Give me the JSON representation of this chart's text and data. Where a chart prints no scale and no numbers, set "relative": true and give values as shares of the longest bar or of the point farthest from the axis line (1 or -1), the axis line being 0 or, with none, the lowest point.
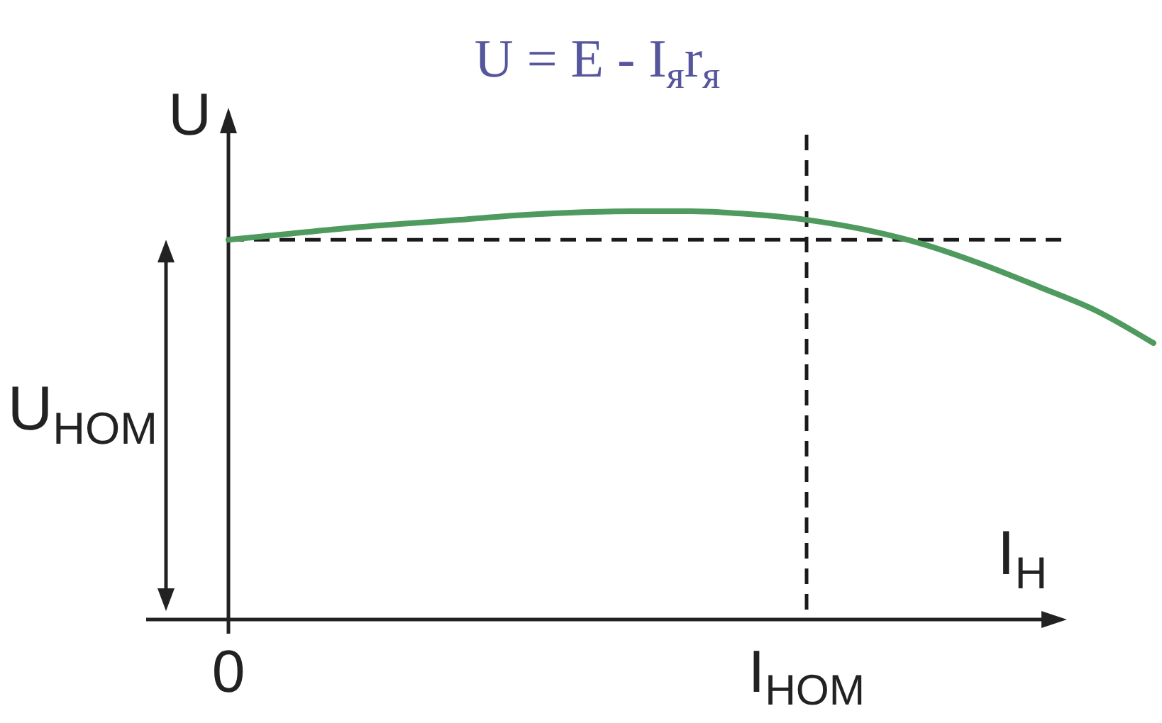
{
  "chart_data": {
    "type": "line",
    "title": "U = E - I$_{я}$r$_{я}$",
    "xlabel": "I$_{Н}$",
    "ylabel": "U",
    "categories": [
      "0",
      null,
      null,
      null,
      null,
      null,
      null,
      null,
      null,
      null,
      "I$_{НОМ}$",
      null,
      null,
      null,
      null,
      null,
      null
    ],
    "series": [
      {
        "color": "#4f9a5f",
        "values": [
          0.93,
          0.944,
          0.958,
          0.969,
          0.979,
          0.99,
          0.997,
          1,
          1,
          0.993,
          0.979,
          0.955,
          0.92,
          0.872,
          0.816,
          0.757,
          0.677
        ]
      }
    ],
    "relative": true,
    "tick_labels": "x",
    "ref_lines": [
      {
        "axis": "y",
        "value": 0.93,
        "label": "U$_{НОМ}$",
        "line_style": "dashed",
        "color": "#1a1a1a"
      },
      {
        "axis": "x",
        "value": "I$_{НОМ}$",
        "line_style": "dashed",
        "color": "#1a1a1a"
      }
    ]
  }
}
